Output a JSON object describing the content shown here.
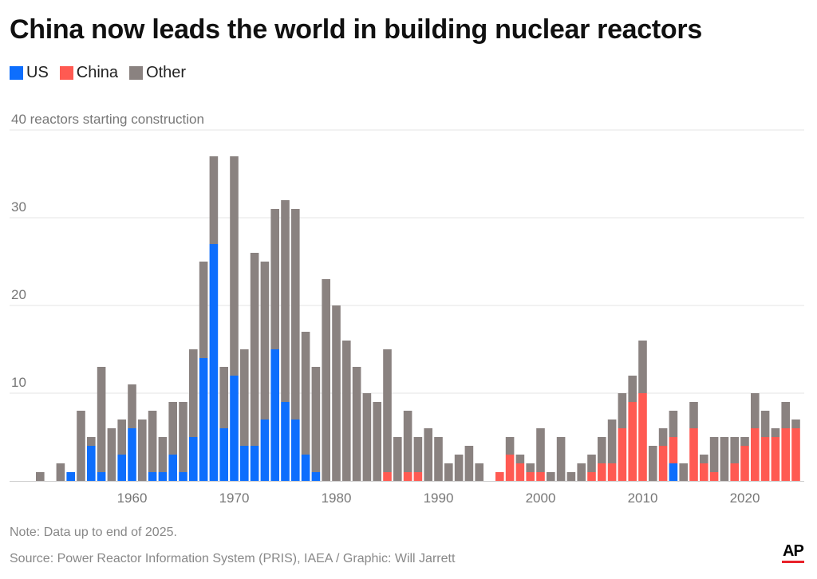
{
  "title": "China now leads the world in building nuclear reactors",
  "legend": [
    {
      "name": "US",
      "color": "#0d6efd"
    },
    {
      "name": "China",
      "color": "#ff5a52"
    },
    {
      "name": "Other",
      "color": "#8a8280"
    }
  ],
  "note": "Note: Data up to end of 2025.",
  "source": "Source: Power Reactor Information System (PRIS), IAEA / Graphic: Will Jarrett",
  "logo": "AP",
  "chart_data": {
    "type": "bar",
    "stacked": true,
    "ylabel": "reactors starting construction",
    "ylim": [
      0,
      40
    ],
    "yticks": [
      0,
      10,
      20,
      30,
      40
    ],
    "ytick_labels": [
      "",
      "10",
      "20",
      "30",
      "40 reactors starting construction"
    ],
    "xticks": [
      1960,
      1970,
      1980,
      1990,
      2000,
      2010,
      2020
    ],
    "grid": true,
    "legend_position": "top-left",
    "x": [
      1951,
      1952,
      1953,
      1954,
      1955,
      1956,
      1957,
      1958,
      1959,
      1960,
      1961,
      1962,
      1963,
      1964,
      1965,
      1966,
      1967,
      1968,
      1969,
      1970,
      1971,
      1972,
      1973,
      1974,
      1975,
      1976,
      1977,
      1978,
      1979,
      1980,
      1981,
      1982,
      1983,
      1984,
      1985,
      1986,
      1987,
      1988,
      1989,
      1990,
      1991,
      1992,
      1993,
      1994,
      1995,
      1996,
      1997,
      1998,
      1999,
      2000,
      2001,
      2002,
      2003,
      2004,
      2005,
      2006,
      2007,
      2008,
      2009,
      2010,
      2011,
      2012,
      2013,
      2014,
      2015,
      2016,
      2017,
      2018,
      2019,
      2020,
      2021,
      2022,
      2023,
      2024,
      2025
    ],
    "series": [
      {
        "name": "US",
        "color": "#0d6efd",
        "values": [
          0,
          0,
          0,
          1,
          0,
          4,
          1,
          0,
          3,
          6,
          0,
          1,
          1,
          3,
          1,
          5,
          14,
          27,
          6,
          12,
          4,
          4,
          7,
          15,
          9,
          7,
          3,
          1,
          0,
          0,
          0,
          0,
          0,
          0,
          0,
          0,
          0,
          0,
          0,
          0,
          0,
          0,
          0,
          0,
          0,
          0,
          0,
          0,
          0,
          0,
          0,
          0,
          0,
          0,
          0,
          0,
          0,
          0,
          0,
          0,
          0,
          0,
          2,
          0,
          0,
          0,
          0,
          0,
          0,
          0,
          0,
          0,
          0,
          0,
          0
        ]
      },
      {
        "name": "China",
        "color": "#ff5a52",
        "values": [
          0,
          0,
          0,
          0,
          0,
          0,
          0,
          0,
          0,
          0,
          0,
          0,
          0,
          0,
          0,
          0,
          0,
          0,
          0,
          0,
          0,
          0,
          0,
          0,
          0,
          0,
          0,
          0,
          0,
          0,
          0,
          0,
          0,
          0,
          1,
          0,
          1,
          1,
          0,
          0,
          0,
          0,
          0,
          0,
          0,
          1,
          3,
          2,
          1,
          1,
          0,
          0,
          0,
          0,
          1,
          2,
          2,
          6,
          9,
          10,
          0,
          4,
          3,
          0,
          6,
          2,
          1,
          0,
          2,
          4,
          6,
          5,
          5,
          6,
          6
        ]
      },
      {
        "name": "Other",
        "color": "#8a8280",
        "values": [
          1,
          0,
          2,
          0,
          8,
          1,
          12,
          6,
          4,
          5,
          7,
          7,
          4,
          6,
          8,
          10,
          11,
          10,
          7,
          25,
          11,
          22,
          18,
          16,
          23,
          24,
          14,
          12,
          23,
          20,
          16,
          13,
          10,
          9,
          14,
          5,
          7,
          4,
          6,
          5,
          2,
          3,
          4,
          2,
          0,
          0,
          2,
          1,
          1,
          5,
          1,
          5,
          1,
          2,
          2,
          3,
          5,
          4,
          3,
          6,
          4,
          2,
          3,
          2,
          3,
          1,
          4,
          5,
          3,
          1,
          4,
          3,
          1,
          3,
          1
        ]
      }
    ]
  }
}
